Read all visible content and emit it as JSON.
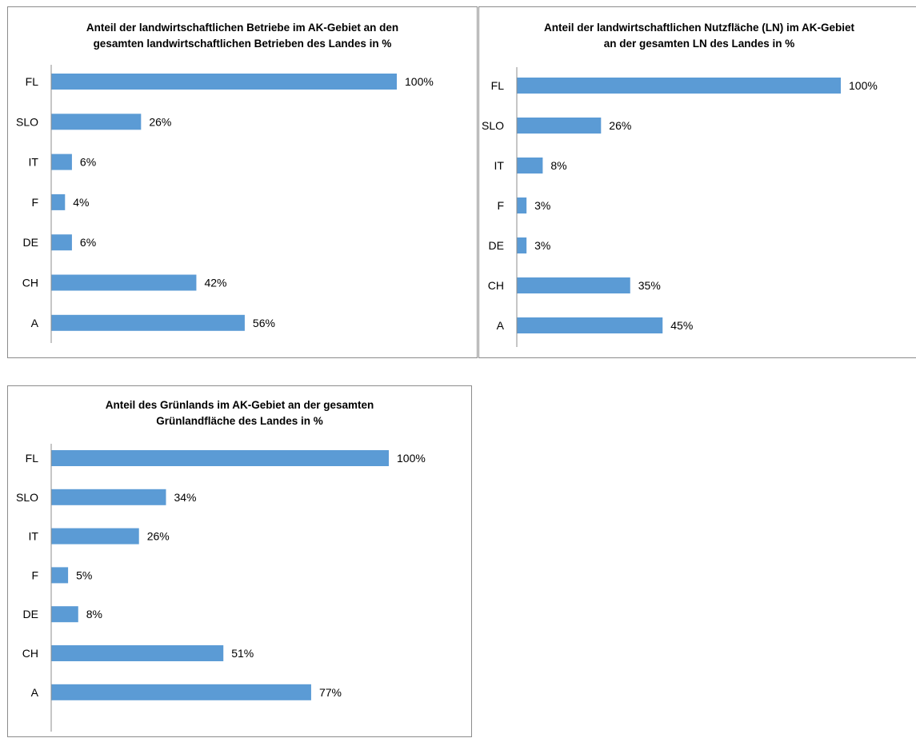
{
  "colors": {
    "bar": "#5b9bd5",
    "axis": "#8c8c8c",
    "border": "#8c8c8c",
    "text": "#000000"
  },
  "chart_data": [
    {
      "type": "bar",
      "orientation": "horizontal",
      "title_lines": [
        "Anteil der landwirtschaftlichen Betriebe im AK-Gebiet an den",
        "gesamten landwirtschaftlichen Betrieben des Landes in %"
      ],
      "title": "Anteil der landwirtschaftlichen Betriebe im AK-Gebiet an den gesamten landwirtschaftlichen Betrieben des Landes in %",
      "categories": [
        "FL",
        "SLO",
        "IT",
        "F",
        "DE",
        "CH",
        "A"
      ],
      "values": [
        100,
        26,
        6,
        4,
        6,
        42,
        56
      ],
      "data_labels": [
        "100%",
        "26%",
        "6%",
        "4%",
        "6%",
        "42%",
        "56%"
      ],
      "xlim": [
        0,
        100
      ],
      "unit": "%",
      "grid": false,
      "legend": "none"
    },
    {
      "type": "bar",
      "orientation": "horizontal",
      "title_lines": [
        "Anteil der landwirtschaftlichen Nutzfläche (LN) im AK-Gebiet",
        "an der gesamten LN des Landes in %"
      ],
      "title": "Anteil der landwirtschaftlichen Nutzfläche (LN) im AK-Gebiet an der gesamten LN des Landes in %",
      "categories": [
        "FL",
        "SLO",
        "IT",
        "F",
        "DE",
        "CH",
        "A"
      ],
      "values": [
        100,
        26,
        8,
        3,
        3,
        35,
        45
      ],
      "data_labels": [
        "100%",
        "26%",
        "8%",
        "3%",
        "3%",
        "35%",
        "45%"
      ],
      "xlim": [
        0,
        100
      ],
      "unit": "%",
      "grid": false,
      "legend": "none"
    },
    {
      "type": "bar",
      "orientation": "horizontal",
      "title_lines": [
        "Anteil des Grünlands im AK-Gebiet an der gesamten",
        "Grünlandfläche des Landes in %"
      ],
      "title": "Anteil des Grünlands im AK-Gebiet an der gesamten Grünlandfläche des Landes in %",
      "categories": [
        "FL",
        "SLO",
        "IT",
        "F",
        "DE",
        "CH",
        "A"
      ],
      "values": [
        100,
        34,
        26,
        5,
        8,
        51,
        77
      ],
      "data_labels": [
        "100%",
        "34%",
        "26%",
        "5%",
        "8%",
        "51%",
        "77%"
      ],
      "xlim": [
        0,
        100
      ],
      "unit": "%",
      "grid": false,
      "legend": "none"
    }
  ]
}
